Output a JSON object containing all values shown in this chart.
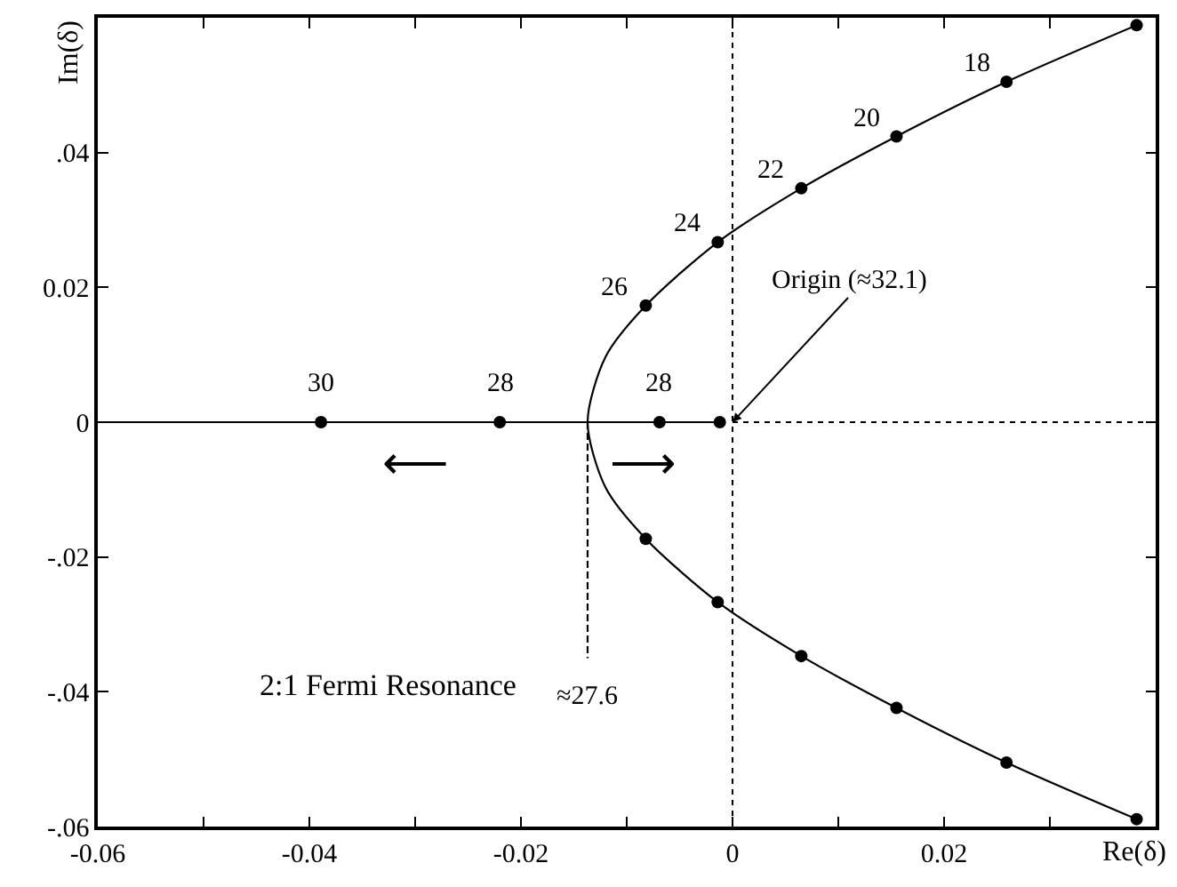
{
  "chart_data": {
    "type": "scatter",
    "xlabel": "Re(δ)",
    "ylabel": "Im(δ)",
    "xlim": [
      -0.06,
      0.04
    ],
    "ylim": [
      -0.06,
      0.06
    ],
    "xticks": [
      {
        "value": -0.06,
        "label": "-0.06"
      },
      {
        "value": -0.05,
        "label": null
      },
      {
        "value": -0.04,
        "label": "-0.04"
      },
      {
        "value": -0.03,
        "label": null
      },
      {
        "value": -0.02,
        "label": "-0.02"
      },
      {
        "value": -0.01,
        "label": null
      },
      0,
      {
        "value": 0.01,
        "label": null
      },
      {
        "value": 0.02,
        "label": "0.02"
      },
      {
        "value": 0.03,
        "label": null
      }
    ],
    "yticks": [
      {
        "value": -0.06,
        "label": "-.06"
      },
      {
        "value": -0.04,
        "label": "-.04"
      },
      {
        "value": -0.02,
        "label": "-.02"
      },
      0,
      {
        "value": 0.02,
        "label": "0.02"
      },
      {
        "value": 0.04,
        "label": ".04"
      }
    ],
    "marker": "circle",
    "series": [
      {
        "type": "line",
        "color": "#000000",
        "line_style": "solid",
        "marker": "none",
        "x": [
          0.0382,
          0.0259,
          0.0155,
          0.0065,
          -0.0014,
          -0.0082,
          -0.012,
          -0.0137,
          -0.012,
          -0.0082,
          -0.0014,
          0.0065,
          0.0155,
          0.0259,
          0.0382
        ],
        "values": [
          -0.0589,
          -0.0505,
          -0.0424,
          -0.0347,
          -0.0267,
          -0.0173,
          -0.0097,
          0,
          0.0097,
          0.0173,
          0.0267,
          0.0347,
          0.0424,
          0.0505,
          0.0589
        ]
      },
      {
        "type": "line",
        "color": "#000000",
        "line_style": "solid",
        "marker": "none",
        "x": [
          -0.06,
          -0.0012
        ],
        "values": [
          0,
          0
        ]
      },
      {
        "type": "line",
        "color": "#000000",
        "line_style": "dotted",
        "marker": "none",
        "x": [
          0,
          0.04
        ],
        "values": [
          0,
          0
        ]
      },
      {
        "type": "line",
        "color": "#000000",
        "line_style": "dashed",
        "marker": "none",
        "x": [
          -0.0137,
          -0.0137
        ],
        "values": [
          0,
          -0.035
        ]
      },
      {
        "color": "#000000",
        "x": [
          -0.0389,
          -0.022,
          -0.0069,
          -0.0012,
          -0.0082,
          -0.0014,
          0.0065,
          0.0155,
          0.0259,
          0.0382,
          -0.0082,
          -0.0014,
          0.0065,
          0.0155,
          0.0259,
          0.0382
        ],
        "values": [
          0,
          0,
          0,
          0,
          0.0173,
          0.0267,
          0.0347,
          0.0424,
          0.0505,
          0.0589,
          -0.0173,
          -0.0267,
          -0.0347,
          -0.0424,
          -0.0505,
          -0.0589
        ]
      }
    ],
    "ref_lines": [
      {
        "axis": "x",
        "value": 0,
        "line_style": "dotted",
        "color": "#000000"
      }
    ],
    "annotations": [
      {
        "text": "30",
        "x": -0.0389,
        "y": 0
      },
      {
        "text": "28",
        "x": -0.022,
        "y": 0
      },
      {
        "text": "28",
        "x": -0.0069,
        "y": 0
      },
      {
        "text": "26",
        "x": -0.0082,
        "y": 0.0173
      },
      {
        "text": "24",
        "x": -0.0014,
        "y": 0.0267
      },
      {
        "text": "22",
        "x": 0.0065,
        "y": 0.0347
      },
      {
        "text": "20",
        "x": 0.0155,
        "y": 0.0424
      },
      {
        "text": "18",
        "x": 0.0259,
        "y": 0.0505
      },
      {
        "text": "Origin (≈32.1)",
        "x": 0,
        "y": 0
      },
      {
        "text": "≈27.6",
        "x": -0.0137,
        "y": -0.035
      },
      "⟵",
      "⟶",
      "2:1 Fermi Resonance"
    ]
  }
}
